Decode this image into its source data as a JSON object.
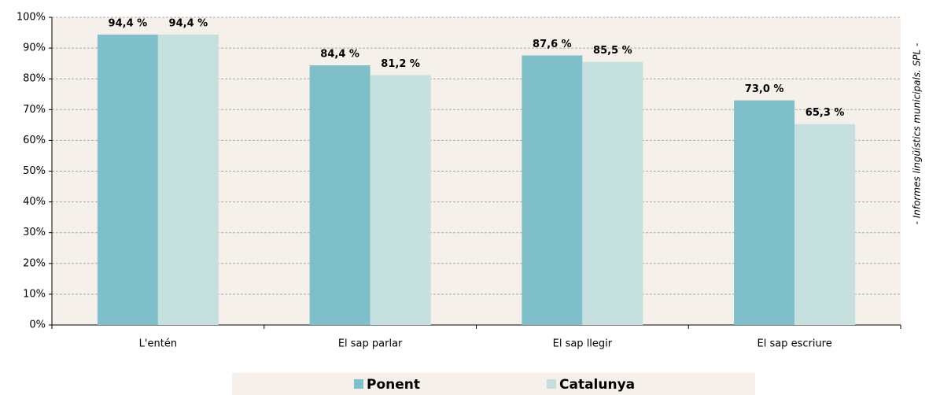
{
  "chart_data": {
    "type": "bar",
    "categories": [
      "L'entén",
      "El sap parlar",
      "El sap llegir",
      "El sap escriure"
    ],
    "series": [
      {
        "name": "Ponent",
        "color": "#7fbfca",
        "values": [
          94.4,
          84.4,
          87.6,
          73.0
        ],
        "value_labels": [
          "94,4 %",
          "84,4 %",
          "87,6 %",
          "73,0 %"
        ]
      },
      {
        "name": "Catalunya",
        "color": "#c5e0df",
        "values": [
          94.4,
          81.2,
          85.5,
          65.3
        ],
        "value_labels": [
          "94,4 %",
          "81,2 %",
          "85,5 %",
          "65,3 %"
        ]
      }
    ],
    "ylim": [
      0,
      100
    ],
    "yticks": [
      {
        "value": 0,
        "label": "0%"
      },
      {
        "value": 10,
        "label": "10%"
      },
      {
        "value": 20,
        "label": "20%"
      },
      {
        "value": 30,
        "label": "30%"
      },
      {
        "value": 40,
        "label": "40%"
      },
      {
        "value": 50,
        "label": "50%"
      },
      {
        "value": 60,
        "label": "60%"
      },
      {
        "value": 70,
        "label": "70%"
      },
      {
        "value": 80,
        "label": "80%"
      },
      {
        "value": 90,
        "label": "90%"
      },
      {
        "value": 100,
        "label": "100%"
      }
    ],
    "grid": true,
    "legend": "bottom",
    "source": "- Informes lingüístics municipals. SPL -"
  }
}
